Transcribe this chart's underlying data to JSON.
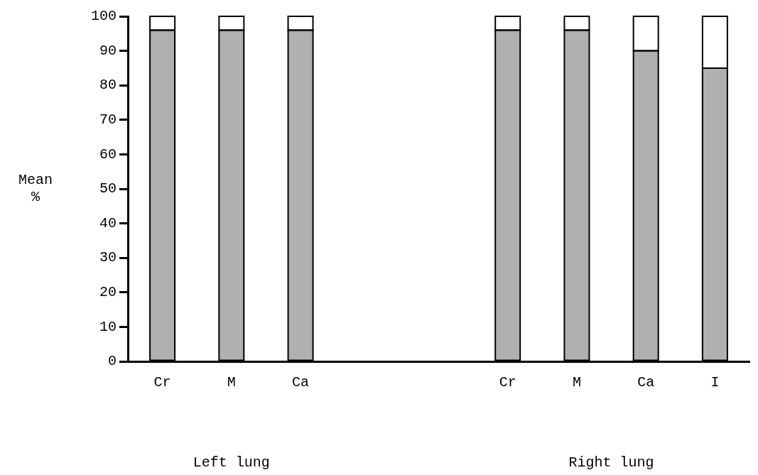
{
  "chart_data": {
    "type": "bar",
    "stacked": true,
    "ylabel": "Mean %",
    "categories": [
      "Cr",
      "M",
      "Ca",
      null,
      null,
      "Cr",
      "M",
      "Ca",
      "I"
    ],
    "series": [
      {
        "color": "#b0b0b0",
        "values": [
          96,
          96,
          96,
          null,
          null,
          96,
          96,
          90,
          85
        ]
      },
      {
        "color": "#ffffff",
        "values": [
          4,
          4,
          4,
          null,
          null,
          4,
          4,
          10,
          15
        ]
      }
    ],
    "ylim": [
      0,
      100
    ],
    "yticks": [
      0,
      10,
      20,
      30,
      40,
      50,
      60,
      70,
      80,
      90,
      100
    ],
    "grid": false,
    "legend": false,
    "annotations": [
      "Left lung",
      "Right lung"
    ]
  }
}
